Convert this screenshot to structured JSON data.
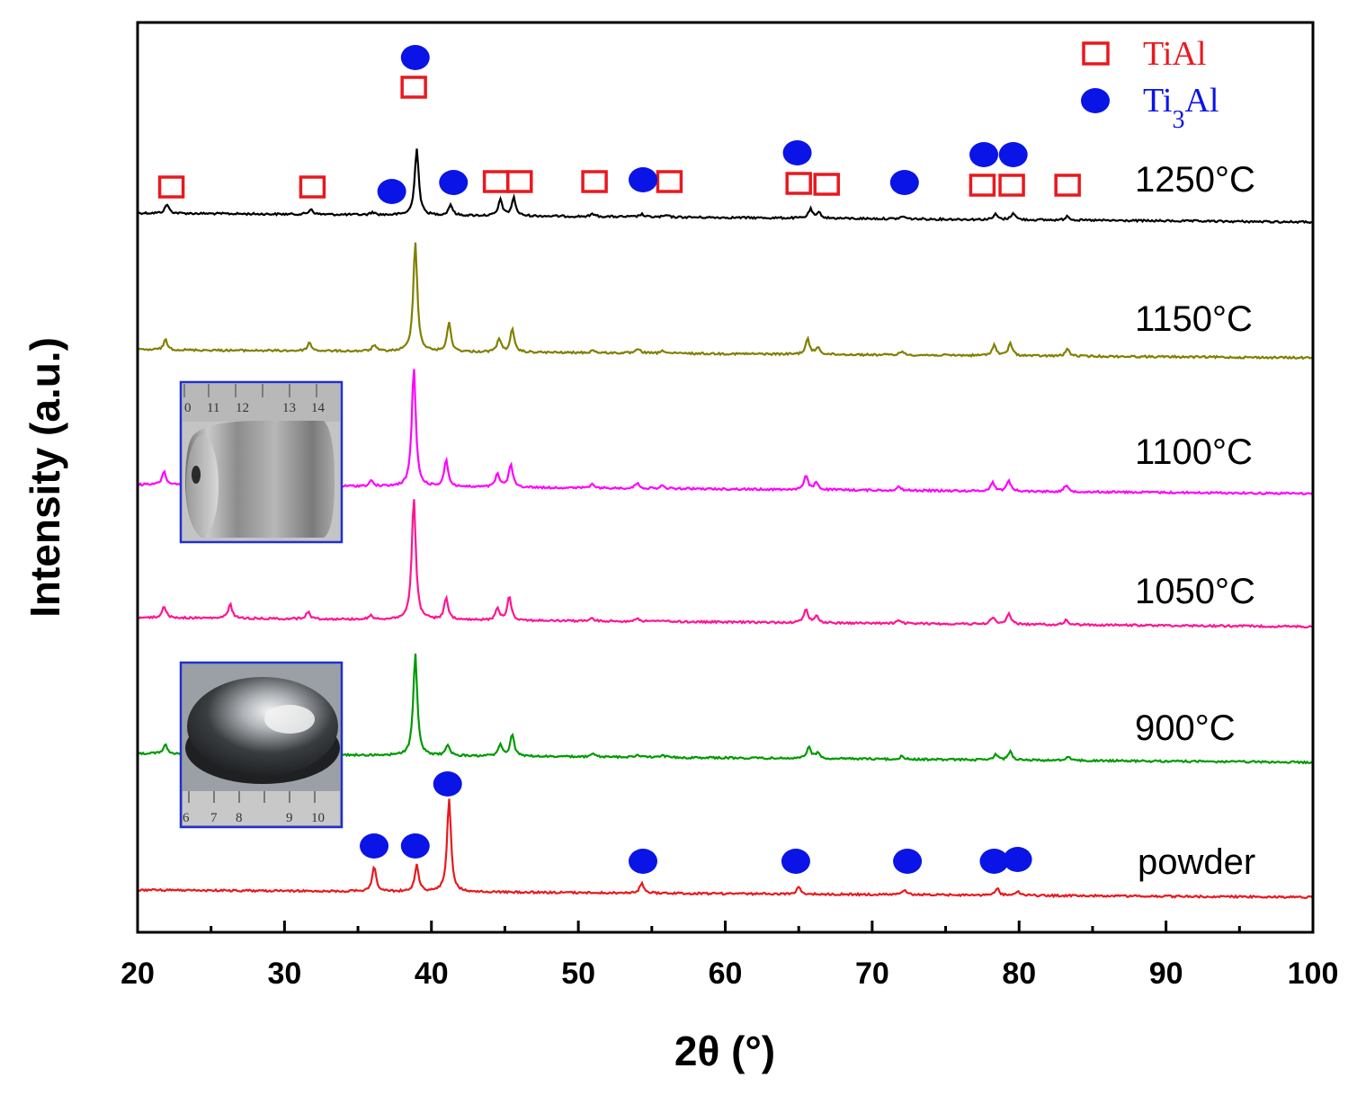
{
  "chart_data": {
    "type": "line",
    "xlabel": "2θ (°)",
    "ylabel": "Intensity (a.u.)",
    "xlim": [
      20,
      100
    ],
    "xticks": [
      20,
      30,
      40,
      50,
      60,
      70,
      80,
      90,
      100
    ],
    "yticks_shown": false,
    "legend": {
      "placement": "top-right",
      "entries": [
        {
          "label": "TiAl",
          "marker": "open-square",
          "color": "#e8191e"
        },
        {
          "label_main": "Ti",
          "label_sub": "3",
          "label_tail": "Al",
          "marker": "filled-circle",
          "color": "#0a14e6"
        }
      ]
    },
    "series": [
      {
        "name": "1250°C",
        "color": "#000000",
        "baseline": 0,
        "peaks": [
          [
            22.0,
            10
          ],
          [
            31.8,
            6
          ],
          [
            36.0,
            3
          ],
          [
            39.0,
            75
          ],
          [
            41.3,
            12
          ],
          [
            44.7,
            18
          ],
          [
            45.6,
            20
          ],
          [
            51.0,
            3
          ],
          [
            54.3,
            3
          ],
          [
            56.0,
            2
          ],
          [
            65.8,
            10
          ],
          [
            66.4,
            6
          ],
          [
            72.1,
            3
          ],
          [
            78.4,
            6
          ],
          [
            79.6,
            8
          ],
          [
            83.3,
            5
          ]
        ]
      },
      {
        "name": "1150°C",
        "color": "#808000",
        "baseline": 0,
        "peaks": [
          [
            21.9,
            11
          ],
          [
            31.7,
            9
          ],
          [
            36.1,
            7
          ],
          [
            38.9,
            123
          ],
          [
            41.2,
            32
          ],
          [
            44.6,
            15
          ],
          [
            45.5,
            25
          ],
          [
            51.0,
            3
          ],
          [
            54.1,
            5
          ],
          [
            55.8,
            3
          ],
          [
            65.6,
            17
          ],
          [
            66.3,
            8
          ],
          [
            72.0,
            4
          ],
          [
            78.3,
            12
          ],
          [
            79.4,
            14
          ],
          [
            83.3,
            8
          ]
        ]
      },
      {
        "name": "1100°C",
        "color": "#ff00ff",
        "baseline": 0,
        "peaks": [
          [
            21.8,
            15
          ],
          [
            35.9,
            6
          ],
          [
            38.8,
            133
          ],
          [
            41.0,
            30
          ],
          [
            44.5,
            15
          ],
          [
            45.4,
            26
          ],
          [
            50.9,
            4
          ],
          [
            54.0,
            6
          ],
          [
            55.7,
            3
          ],
          [
            65.5,
            15
          ],
          [
            66.2,
            8
          ],
          [
            71.8,
            4
          ],
          [
            78.2,
            10
          ],
          [
            79.3,
            12
          ],
          [
            83.2,
            7
          ]
        ]
      },
      {
        "name": "1050°C",
        "color": "#ff1493",
        "baseline": 0,
        "peaks": [
          [
            21.8,
            13
          ],
          [
            26.3,
            16
          ],
          [
            31.6,
            8
          ],
          [
            35.9,
            4
          ],
          [
            38.8,
            137
          ],
          [
            41.0,
            24
          ],
          [
            44.5,
            13
          ],
          [
            45.3,
            27
          ],
          [
            50.9,
            3
          ],
          [
            54.0,
            4
          ],
          [
            55.7,
            2
          ],
          [
            65.5,
            15
          ],
          [
            66.2,
            8
          ],
          [
            71.8,
            3
          ],
          [
            78.2,
            8
          ],
          [
            79.3,
            13
          ],
          [
            83.2,
            5
          ]
        ]
      },
      {
        "name": "900°C",
        "color": "#009a00",
        "baseline": 0,
        "peaks": [
          [
            21.9,
            10
          ],
          [
            38.9,
            113
          ],
          [
            41.1,
            12
          ],
          [
            44.7,
            13
          ],
          [
            45.5,
            24
          ],
          [
            51.0,
            3
          ],
          [
            54.0,
            3
          ],
          [
            55.8,
            2
          ],
          [
            65.7,
            14
          ],
          [
            66.3,
            6
          ],
          [
            72.0,
            3
          ],
          [
            78.4,
            6
          ],
          [
            79.4,
            10
          ],
          [
            83.3,
            5
          ]
        ]
      },
      {
        "name": "powder",
        "color": "#e8191e",
        "baseline": 0,
        "peaks": [
          [
            36.1,
            28
          ],
          [
            39.0,
            30
          ],
          [
            41.2,
            103
          ],
          [
            54.3,
            11
          ],
          [
            65.0,
            8
          ],
          [
            72.2,
            6
          ],
          [
            78.5,
            8
          ],
          [
            79.9,
            5
          ]
        ]
      }
    ],
    "annotations": {
      "tial_square_x": [
        22.3,
        31.9,
        38.8,
        44.4,
        46.0,
        51.1,
        56.2,
        65.0,
        66.9,
        77.5,
        79.5,
        83.3
      ],
      "ti3al_circle_x": [
        37.3,
        38.9,
        41.5,
        54.4,
        64.9,
        72.2,
        77.6,
        79.6
      ],
      "powder_ti3al_circle_x": [
        36.1,
        38.9,
        41.1,
        54.4,
        64.8,
        72.4,
        78.3,
        79.9
      ]
    },
    "insets": [
      {
        "depicts": "polished cylindrical sample with axial hole",
        "ruler_labels": [
          "0",
          "11",
          "12",
          "13",
          "14"
        ]
      },
      {
        "depicts": "polished disc sample",
        "ruler_labels": [
          "6",
          "7",
          "8",
          "9",
          "10"
        ]
      }
    ]
  }
}
